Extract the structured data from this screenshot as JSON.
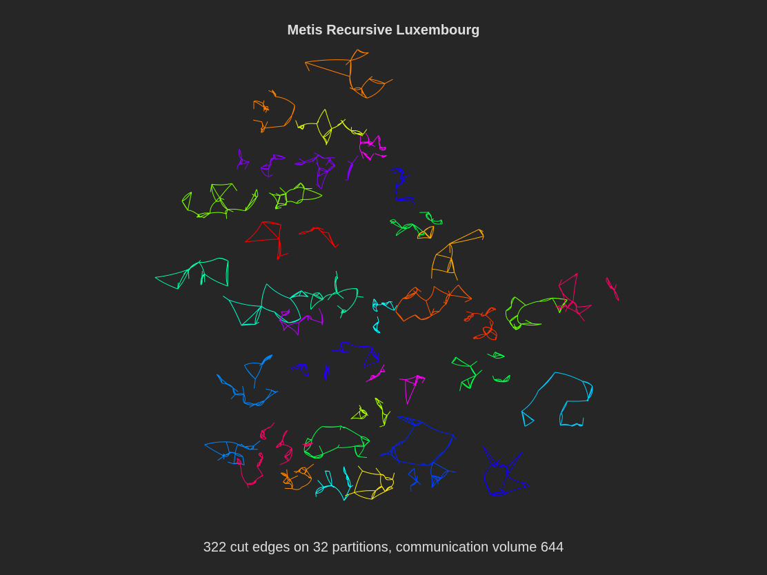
{
  "title": "Metis Recursive Luxembourg",
  "caption": "322 cut edges on 32 partitions, communication volume 644",
  "palette": [
    "#ff7f00",
    "#e5ff00",
    "#ff00ff",
    "#8800ff",
    "#7fff00",
    "#ff0000",
    "#00ffaa",
    "#00ffcc",
    "#aa00ff",
    "#2200ff",
    "#ffaa00",
    "#ff3300",
    "#00ff44",
    "#0088ff",
    "#ff0088",
    "#ff8800",
    "#00ffff",
    "#ffee00",
    "#0022ff",
    "#aaff00",
    "#00ccff",
    "#ff0066",
    "#ccff00",
    "#ff00cc",
    "#0044ff",
    "#00ddff",
    "#ffcc00",
    "#66ff00",
    "#1100ff",
    "#ff5500",
    "#00ff88",
    "#bb00ff"
  ]
}
